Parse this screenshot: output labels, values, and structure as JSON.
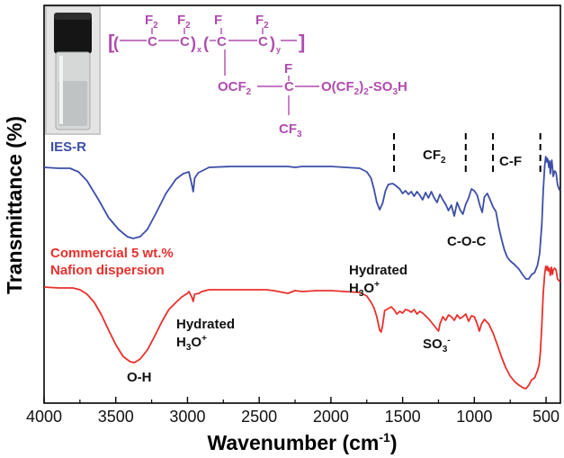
{
  "chart_data": {
    "type": "line",
    "title": "",
    "xlabel": "Wavenumber (cm",
    "xlabel_sup": "-1",
    "xlabel_close": ")",
    "ylabel": "Transmittance (%)",
    "xlim": [
      4000,
      400
    ],
    "x_ticks": [
      {
        "value": 4000,
        "label": "4000"
      },
      {
        "value": 3500,
        "label": "3500"
      },
      {
        "value": 3000,
        "label": "3000"
      },
      {
        "value": 2500,
        "label": "2500"
      },
      {
        "value": 2000,
        "label": "2000"
      },
      {
        "value": 1500,
        "label": "1500"
      },
      {
        "value": 1000,
        "label": "1000"
      },
      {
        "value": 500,
        "label": "500"
      }
    ],
    "series": [
      {
        "name": "IES-R",
        "color": "#3d4ea8",
        "points": [
          [
            4000,
            186
          ],
          [
            3900,
            187
          ],
          [
            3820,
            187
          ],
          [
            3760,
            191
          ],
          [
            3700,
            201
          ],
          [
            3620,
            222
          ],
          [
            3550,
            242
          ],
          [
            3480,
            255
          ],
          [
            3420,
            263
          ],
          [
            3380,
            265
          ],
          [
            3330,
            263
          ],
          [
            3280,
            255
          ],
          [
            3220,
            237
          ],
          [
            3150,
            215
          ],
          [
            3080,
            199
          ],
          [
            3030,
            193
          ],
          [
            2990,
            191
          ],
          [
            2970,
            205
          ],
          [
            2960,
            213
          ],
          [
            2950,
            198
          ],
          [
            2925,
            192
          ],
          [
            2900,
            190
          ],
          [
            2850,
            186
          ],
          [
            2700,
            185
          ],
          [
            2600,
            185
          ],
          [
            2500,
            185
          ],
          [
            2400,
            185
          ],
          [
            2300,
            185
          ],
          [
            2250,
            186
          ],
          [
            2200,
            185
          ],
          [
            2100,
            185
          ],
          [
            2000,
            185
          ],
          [
            1900,
            186
          ],
          [
            1800,
            187
          ],
          [
            1750,
            191
          ],
          [
            1720,
            198
          ],
          [
            1700,
            210
          ],
          [
            1680,
            225
          ],
          [
            1660,
            233
          ],
          [
            1640,
            226
          ],
          [
            1620,
            212
          ],
          [
            1600,
            205
          ],
          [
            1570,
            204
          ],
          [
            1550,
            206
          ],
          [
            1520,
            210
          ],
          [
            1500,
            215
          ],
          [
            1480,
            212
          ],
          [
            1460,
            216
          ],
          [
            1440,
            213
          ],
          [
            1420,
            218
          ],
          [
            1400,
            213
          ],
          [
            1380,
            217
          ],
          [
            1360,
            222
          ],
          [
            1340,
            214
          ],
          [
            1320,
            220
          ],
          [
            1300,
            213
          ],
          [
            1280,
            220
          ],
          [
            1260,
            225
          ],
          [
            1240,
            216
          ],
          [
            1220,
            222
          ],
          [
            1200,
            227
          ],
          [
            1180,
            234
          ],
          [
            1160,
            228
          ],
          [
            1140,
            240
          ],
          [
            1120,
            225
          ],
          [
            1100,
            233
          ],
          [
            1080,
            238
          ],
          [
            1060,
            227
          ],
          [
            1040,
            220
          ],
          [
            1020,
            210
          ],
          [
            1000,
            212
          ],
          [
            980,
            217
          ],
          [
            960,
            229
          ],
          [
            945,
            236
          ],
          [
            930,
            219
          ],
          [
            910,
            215
          ],
          [
            890,
            222
          ],
          [
            870,
            230
          ],
          [
            850,
            235
          ],
          [
            830,
            252
          ],
          [
            810,
            266
          ],
          [
            790,
            278
          ],
          [
            770,
            286
          ],
          [
            750,
            290
          ],
          [
            720,
            294
          ],
          [
            690,
            299
          ],
          [
            660,
            306
          ],
          [
            640,
            310
          ],
          [
            620,
            310
          ],
          [
            600,
            305
          ],
          [
            580,
            303
          ],
          [
            560,
            295
          ],
          [
            545,
            282
          ],
          [
            530,
            250
          ],
          [
            520,
            212
          ],
          [
            510,
            185
          ],
          [
            502,
            174
          ],
          [
            495,
            180
          ],
          [
            490,
            176
          ],
          [
            485,
            180
          ],
          [
            480,
            186
          ],
          [
            475,
            179
          ],
          [
            470,
            193
          ],
          [
            465,
            183
          ],
          [
            460,
            178
          ],
          [
            455,
            186
          ],
          [
            450,
            196
          ],
          [
            440,
            190
          ],
          [
            430,
            192
          ],
          [
            420,
            205
          ],
          [
            410,
            210
          ],
          [
            402,
            212
          ]
        ]
      },
      {
        "name": "Commercial 5 wt.% Nafion dispersion",
        "color": "#e8302c",
        "points": [
          [
            4000,
            319
          ],
          [
            3900,
            320
          ],
          [
            3800,
            320
          ],
          [
            3750,
            322
          ],
          [
            3700,
            327
          ],
          [
            3650,
            336
          ],
          [
            3600,
            350
          ],
          [
            3550,
            367
          ],
          [
            3500,
            383
          ],
          [
            3450,
            396
          ],
          [
            3400,
            402
          ],
          [
            3370,
            403
          ],
          [
            3330,
            399
          ],
          [
            3280,
            389
          ],
          [
            3230,
            374
          ],
          [
            3180,
            358
          ],
          [
            3130,
            344
          ],
          [
            3080,
            336
          ],
          [
            3040,
            330
          ],
          [
            3000,
            326
          ],
          [
            2990,
            324
          ],
          [
            2970,
            330
          ],
          [
            2960,
            335
          ],
          [
            2950,
            327
          ],
          [
            2920,
            326
          ],
          [
            2900,
            324
          ],
          [
            2850,
            322
          ],
          [
            2700,
            322
          ],
          [
            2600,
            322
          ],
          [
            2500,
            322
          ],
          [
            2450,
            322
          ],
          [
            2400,
            323
          ],
          [
            2300,
            326
          ],
          [
            2250,
            323
          ],
          [
            2200,
            324
          ],
          [
            2100,
            323
          ],
          [
            2000,
            323
          ],
          [
            1900,
            324
          ],
          [
            1800,
            325
          ],
          [
            1750,
            329
          ],
          [
            1720,
            336
          ],
          [
            1700,
            342
          ],
          [
            1680,
            352
          ],
          [
            1660,
            367
          ],
          [
            1650,
            369
          ],
          [
            1640,
            362
          ],
          [
            1625,
            345
          ],
          [
            1600,
            343
          ],
          [
            1580,
            341
          ],
          [
            1560,
            344
          ],
          [
            1540,
            349
          ],
          [
            1520,
            346
          ],
          [
            1500,
            348
          ],
          [
            1480,
            344
          ],
          [
            1460,
            345
          ],
          [
            1440,
            347
          ],
          [
            1420,
            344
          ],
          [
            1400,
            349
          ],
          [
            1380,
            346
          ],
          [
            1360,
            348
          ],
          [
            1340,
            351
          ],
          [
            1320,
            354
          ],
          [
            1300,
            358
          ],
          [
            1280,
            362
          ],
          [
            1260,
            366
          ],
          [
            1250,
            368
          ],
          [
            1240,
            360
          ],
          [
            1220,
            352
          ],
          [
            1200,
            356
          ],
          [
            1180,
            350
          ],
          [
            1160,
            352
          ],
          [
            1140,
            356
          ],
          [
            1120,
            350
          ],
          [
            1100,
            354
          ],
          [
            1080,
            352
          ],
          [
            1060,
            349
          ],
          [
            1040,
            357
          ],
          [
            1020,
            351
          ],
          [
            1000,
            352
          ],
          [
            980,
            360
          ],
          [
            965,
            368
          ],
          [
            950,
            360
          ],
          [
            930,
            355
          ],
          [
            900,
            360
          ],
          [
            870,
            370
          ],
          [
            840,
            383
          ],
          [
            810,
            397
          ],
          [
            780,
            409
          ],
          [
            750,
            418
          ],
          [
            720,
            424
          ],
          [
            690,
            428
          ],
          [
            660,
            431
          ],
          [
            640,
            432
          ],
          [
            620,
            428
          ],
          [
            600,
            422
          ],
          [
            580,
            420
          ],
          [
            560,
            412
          ],
          [
            548,
            405
          ],
          [
            540,
            392
          ],
          [
            530,
            362
          ],
          [
            520,
            326
          ],
          [
            510,
            305
          ],
          [
            502,
            296
          ],
          [
            495,
            300
          ],
          [
            490,
            296
          ],
          [
            485,
            301
          ],
          [
            478,
            298
          ],
          [
            470,
            306
          ],
          [
            462,
            297
          ],
          [
            455,
            305
          ],
          [
            450,
            300
          ],
          [
            440,
            298
          ],
          [
            430,
            300
          ],
          [
            420,
            310
          ],
          [
            410,
            312
          ],
          [
            402,
            313
          ]
        ]
      }
    ],
    "series_labels": [
      {
        "lines": [
          "IES-R"
        ],
        "color": "#3d4ea8"
      },
      {
        "lines": [
          "Commercial 5 wt.%",
          "Nafion dispersion"
        ],
        "color": "#e8302c"
      }
    ],
    "annotations": [
      {
        "id": "cf2",
        "text": "CF",
        "sub": "2"
      },
      {
        "id": "cf",
        "text": "C-F"
      },
      {
        "id": "coc",
        "text": "C-O-C"
      },
      {
        "id": "h3o-upper",
        "line1": "Hydrated",
        "text": "H",
        "sub": "3",
        "mid": "O",
        "sup": "+"
      },
      {
        "id": "h3o-lower",
        "line1": "Hydrated",
        "text": "H",
        "sub": "3",
        "mid": "O",
        "sup": "+"
      },
      {
        "id": "so3",
        "text": "SO",
        "sub": "3",
        "sup": "-"
      },
      {
        "id": "oh",
        "text": "O-H"
      }
    ],
    "band_markers_cm": [
      1560,
      1060,
      870,
      540
    ],
    "structure": {
      "color": "#b04bb0",
      "f_labels": [
        "F",
        "F",
        "F",
        "F",
        "F"
      ],
      "f2_sub": "2",
      "backbone_c": [
        "C",
        "C",
        "C",
        "C"
      ],
      "x_sub": "x",
      "y_sub": "y",
      "side_chain_1": "OCF",
      "side_chain_1_sub": "2",
      "side_chain_c": "C",
      "side_chain_2": "O(CF",
      "side_chain_2_sub": "2",
      "side_chain_2_end": ")",
      "side_chain_2_sub2": "2",
      "side_chain_2_tail": "-SO",
      "side_chain_2_sub3": "3",
      "side_chain_2_h": "H",
      "cf3": "CF",
      "cf3_sub": "3"
    }
  }
}
